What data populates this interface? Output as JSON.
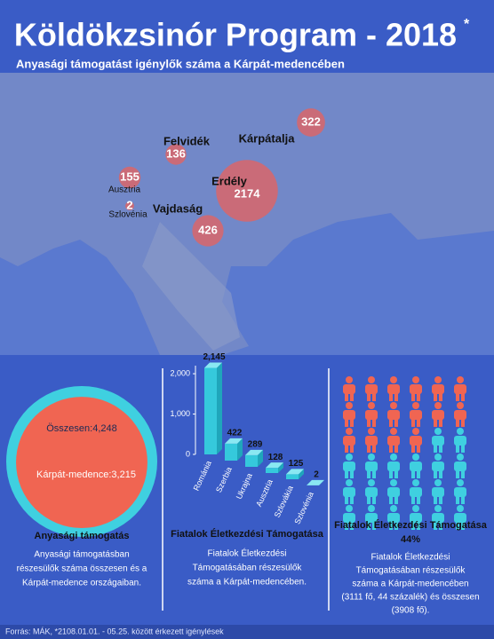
{
  "header": {
    "title": "Köldökzsinór Program - 2018",
    "title_mark": "*",
    "subtitle": "Anyasági támogatást igénylők száma a Kárpát-medencében"
  },
  "map": {
    "regions": [
      {
        "name": "Felvidék",
        "value": 136
      },
      {
        "name": "Kárpátalja",
        "value": 322
      },
      {
        "name": "Erdély",
        "value": 2174
      },
      {
        "name": "Vajdaság",
        "value": 426
      },
      {
        "name": "Ausztria",
        "value": 155
      },
      {
        "name": "Szlovénia",
        "value": 2
      }
    ]
  },
  "circles": {
    "outer": {
      "label": "Összesen:4,248",
      "value": 4248
    },
    "inner": {
      "label": "Kárpát-medence:3,215",
      "value": 3215
    },
    "title": "Anyasági támogatás",
    "description": [
      "Anyasági támogatásban",
      "részesülők száma összesen és a",
      "Kárpát-medence országaiban."
    ]
  },
  "chart_data": {
    "type": "bar3d",
    "title": "Fiatalok Életkezdési Támogatása",
    "categories": [
      "Románia",
      "Szerbia",
      "Ukrajna",
      "Ausztria",
      "Szlovákia",
      "Szlovénia"
    ],
    "values": [
      2145,
      422,
      289,
      128,
      125,
      2
    ],
    "value_labels": [
      "2,145",
      "422",
      "289",
      "128",
      "125",
      "2"
    ],
    "color": "#35c9dc",
    "ylim": [
      0,
      2200
    ],
    "yticks": [
      0,
      {
        "value": 1000,
        "label": "1,000"
      },
      {
        "value": 2000,
        "label": "2,000"
      }
    ],
    "description": [
      "Fiatalok Életkezdési",
      "Támogatásában részesülők",
      "száma a Kárpát-medencében."
    ]
  },
  "pictogram": {
    "title": "Fiatalok Életkezdési Támogatása",
    "share": {
      "value": 44,
      "label": "44%"
    },
    "description": [
      "Fiatalok Életkezdési",
      "Támogatásában részesülők",
      "száma a Kárpát-medencében",
      "(3111 fő, 44 százalék) és összesen",
      "(3908 fő)."
    ]
  },
  "footer": "Forrás: MÁK, *2108.01.01. - 05.25. között érkezett igénylések"
}
